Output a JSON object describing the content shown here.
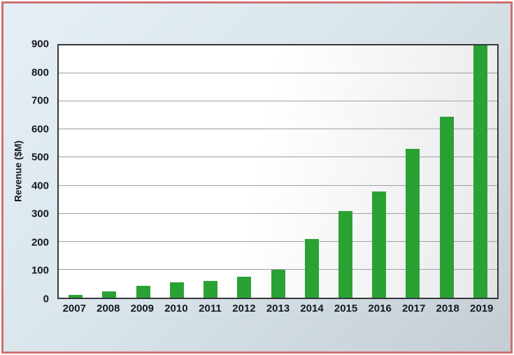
{
  "chart_data": {
    "type": "bar",
    "ylabel": "Revenue ($M)",
    "categories": [
      "2007",
      "2008",
      "2009",
      "2010",
      "2011",
      "2012",
      "2013",
      "2014",
      "2015",
      "2016",
      "2017",
      "2018",
      "2019"
    ],
    "values": [
      10,
      22,
      42,
      55,
      60,
      75,
      100,
      210,
      310,
      380,
      530,
      645,
      900
    ],
    "ylim": [
      0,
      900
    ],
    "yticks": [
      0,
      100,
      200,
      300,
      400,
      500,
      600,
      700,
      800,
      900
    ],
    "grid": true,
    "legend_position": "none",
    "bar_color": "#2aa233"
  },
  "style": {
    "frame_border_color": "#cb7272",
    "background_top_left": "#e6eff6",
    "background_bottom_right": "#c4cdd4",
    "plot_border_color": "#34383c",
    "gridline_color": "#9ba1a6",
    "tick_label_color": "#17191c"
  }
}
